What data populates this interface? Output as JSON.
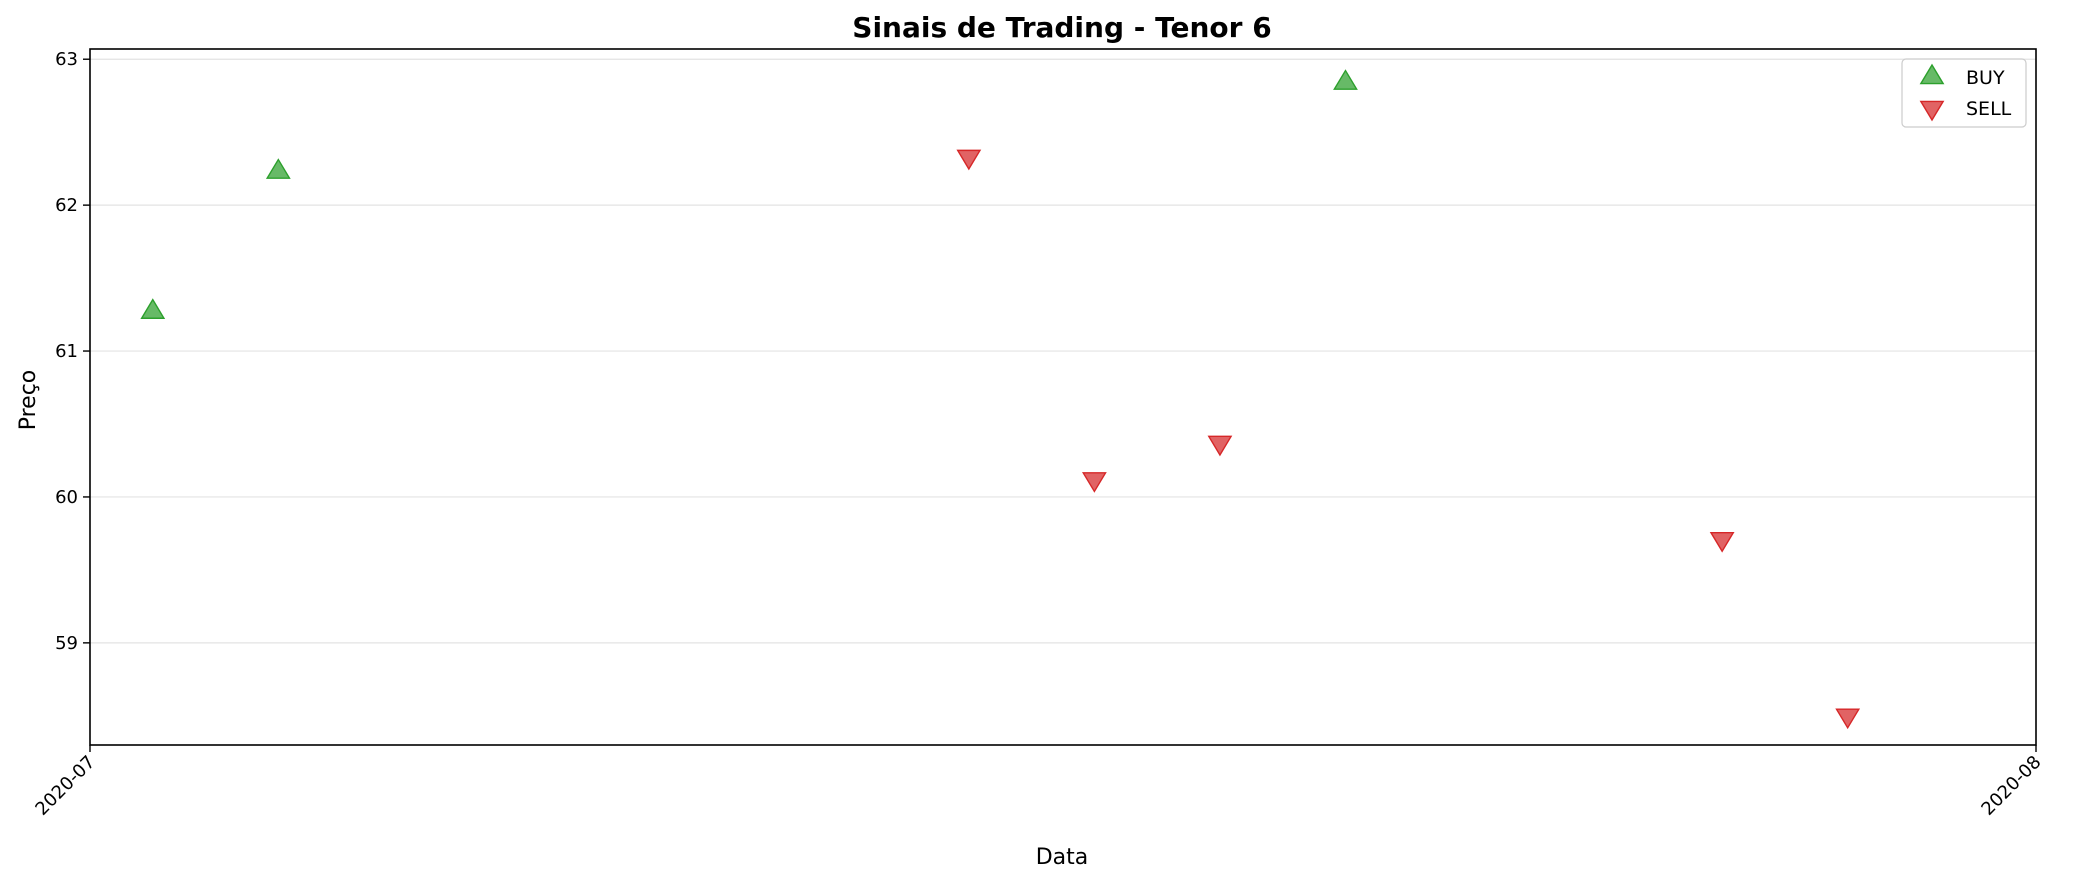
{
  "chart_data": {
    "type": "scatter",
    "title": "Sinais de Trading - Tenor 6",
    "xlabel": "Data",
    "ylabel": "Preço",
    "xlim": [
      "2020-07-01",
      "2020-08-01"
    ],
    "ylim": [
      58.3,
      63.07
    ],
    "x_ticks": [
      {
        "date": "2020-07-01",
        "label": "2020-07"
      },
      {
        "date": "2020-08-01",
        "label": "2020-08"
      }
    ],
    "y_ticks": [
      59,
      60,
      61,
      62,
      63
    ],
    "grid": "horizontal",
    "legend_position": "top-right",
    "series": [
      {
        "name": "BUY",
        "marker": "triangle-up",
        "color": "#2ca02c",
        "points": [
          {
            "x": "2020-07-02",
            "y": 61.27
          },
          {
            "x": "2020-07-04",
            "y": 62.23
          },
          {
            "x": "2020-07-21",
            "y": 62.84
          }
        ]
      },
      {
        "name": "SELL",
        "marker": "triangle-down",
        "color": "#d62728",
        "points": [
          {
            "x": "2020-07-15",
            "y": 62.33
          },
          {
            "x": "2020-07-17",
            "y": 60.12
          },
          {
            "x": "2020-07-19",
            "y": 60.37
          },
          {
            "x": "2020-07-27",
            "y": 59.71
          },
          {
            "x": "2020-07-29",
            "y": 58.5
          }
        ]
      }
    ]
  }
}
